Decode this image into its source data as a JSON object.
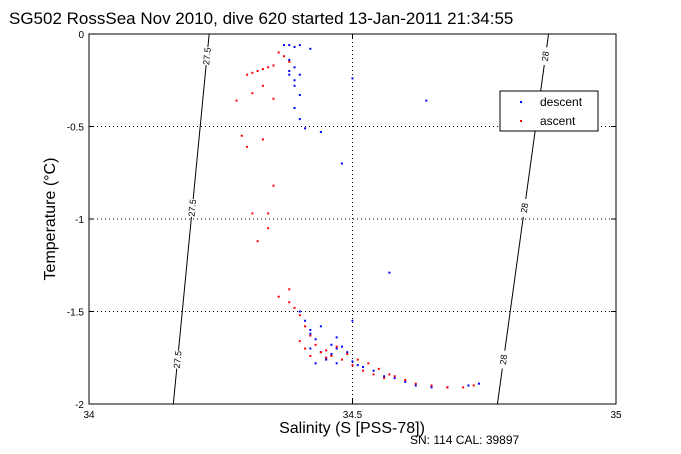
{
  "chart_data": {
    "type": "scatter",
    "title": "SG502 RossSea Nov 2010, dive 620 started 13-Jan-2011 21:34:55",
    "xlabel": "Salinity (S [PSS-78])",
    "ylabel": "Temperature (°C)",
    "xlim": [
      34,
      35
    ],
    "ylim": [
      -2,
      0
    ],
    "x_ticks": [
      "34",
      "34.5",
      "35"
    ],
    "y_ticks": [
      "0",
      "-0.5",
      "-1",
      "-1.5",
      "-2"
    ],
    "grid": true,
    "legend_position": "upper-right",
    "density_contours": [
      {
        "label": "27.5",
        "points": [
          [
            34.228,
            0.0
          ],
          [
            34.16,
            -2.0
          ]
        ]
      },
      {
        "label": "28",
        "points": [
          [
            34.872,
            0.0
          ],
          [
            34.775,
            -2.0
          ]
        ]
      }
    ],
    "series": [
      {
        "name": "descent",
        "color": "#0000ff",
        "x": [
          34.37,
          34.38,
          34.39,
          34.4,
          34.38,
          34.39,
          34.42,
          34.38,
          34.39,
          34.4,
          34.39,
          34.38,
          34.4,
          34.39,
          34.4,
          34.41,
          34.44,
          34.5,
          34.48,
          34.64,
          34.57,
          34.4,
          34.41,
          34.42,
          34.43,
          34.42,
          34.44,
          34.45,
          34.46,
          34.43,
          34.45,
          34.47,
          34.48,
          34.49,
          34.46,
          34.47,
          34.5,
          34.51,
          34.52,
          34.54,
          34.56,
          34.58,
          34.6,
          34.62,
          34.65,
          34.68,
          34.72,
          34.74,
          34.42,
          34.44,
          34.47,
          34.5
        ],
        "y": [
          -0.06,
          -0.06,
          -0.07,
          -0.06,
          -0.14,
          -0.18,
          -0.08,
          -0.2,
          -0.25,
          -0.22,
          -0.28,
          -0.22,
          -0.33,
          -0.4,
          -0.46,
          -0.51,
          -0.53,
          -0.24,
          -0.7,
          -0.36,
          -1.29,
          -1.5,
          -1.55,
          -1.6,
          -1.65,
          -1.7,
          -1.72,
          -1.75,
          -1.68,
          -1.78,
          -1.76,
          -1.7,
          -1.69,
          -1.72,
          -1.73,
          -1.78,
          -1.77,
          -1.79,
          -1.8,
          -1.82,
          -1.85,
          -1.86,
          -1.88,
          -1.9,
          -1.91,
          -1.91,
          -1.9,
          -1.89,
          -1.62,
          -1.58,
          -1.64,
          -1.55
        ]
      },
      {
        "name": "ascent",
        "color": "#ff0000",
        "x": [
          34.36,
          34.37,
          34.38,
          34.35,
          34.34,
          34.33,
          34.32,
          34.31,
          34.3,
          34.33,
          34.31,
          34.35,
          34.28,
          34.29,
          34.33,
          34.3,
          34.35,
          34.31,
          34.34,
          34.34,
          34.32,
          34.38,
          34.36,
          34.38,
          34.39,
          34.4,
          34.41,
          34.42,
          34.43,
          34.44,
          34.45,
          34.46,
          34.48,
          34.5,
          34.52,
          34.54,
          34.56,
          34.58,
          34.6,
          34.62,
          34.65,
          34.68,
          34.71,
          34.73,
          34.4,
          34.41,
          34.42,
          34.45,
          34.47,
          34.49,
          34.51,
          34.53,
          34.55,
          34.57
        ],
        "y": [
          -0.1,
          -0.12,
          -0.15,
          -0.17,
          -0.18,
          -0.19,
          -0.2,
          -0.21,
          -0.22,
          -0.28,
          -0.32,
          -0.35,
          -0.36,
          -0.55,
          -0.57,
          -0.61,
          -0.82,
          -0.97,
          -0.97,
          -1.05,
          -1.12,
          -1.38,
          -1.42,
          -1.45,
          -1.48,
          -1.52,
          -1.58,
          -1.63,
          -1.68,
          -1.72,
          -1.75,
          -1.74,
          -1.76,
          -1.79,
          -1.82,
          -1.84,
          -1.86,
          -1.85,
          -1.87,
          -1.89,
          -1.9,
          -1.91,
          -1.91,
          -1.9,
          -1.66,
          -1.7,
          -1.74,
          -1.71,
          -1.69,
          -1.73,
          -1.76,
          -1.78,
          -1.81,
          -1.84
        ]
      }
    ]
  },
  "footer": {
    "serial": "SN: 114  CAL: 39897"
  }
}
